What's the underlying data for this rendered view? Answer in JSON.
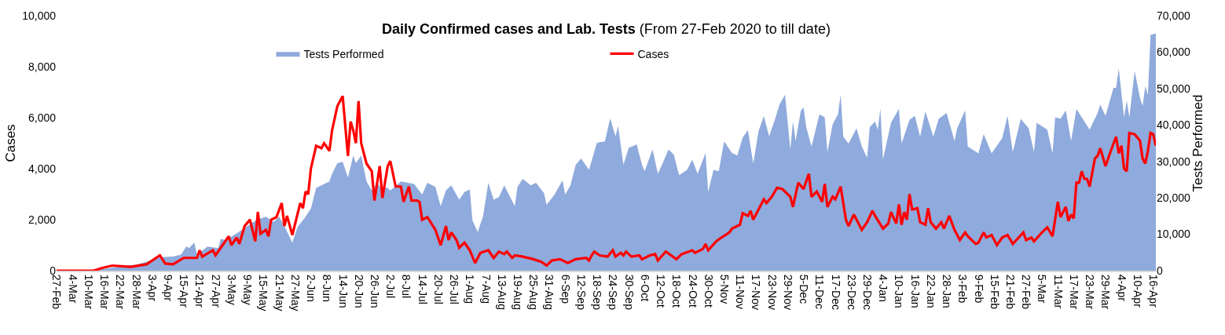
{
  "chart_data": {
    "type": "line",
    "title": "Daily Confirmed cases and Lab. Tests",
    "subtitle": "(From 27-Feb 2020 to till date)",
    "ylabel": "Cases",
    "y2label": "Tests Performed",
    "legend": "top",
    "xlim": [
      "2020-02-27",
      "2021-04-17"
    ],
    "ylim": [
      0,
      10000
    ],
    "yticks": [
      0,
      {
        "value": 2000,
        "label": "2,000"
      },
      {
        "value": 4000,
        "label": "4,000"
      },
      {
        "value": 6000,
        "label": "6,000"
      },
      {
        "value": 8000,
        "label": "8,000"
      },
      {
        "value": 10000,
        "label": "10,000"
      }
    ],
    "y2lim": [
      0,
      70000
    ],
    "y2ticks": [
      0,
      {
        "value": 10000,
        "label": "10,000"
      },
      {
        "value": 20000,
        "label": "20,000"
      },
      {
        "value": 30000,
        "label": "30,000"
      },
      {
        "value": 40000,
        "label": "40,000"
      },
      {
        "value": 50000,
        "label": "50,000"
      },
      {
        "value": 60000,
        "label": "60,000"
      },
      {
        "value": 70000,
        "label": "70,000"
      }
    ],
    "xticks": [
      {
        "value": "2020-02-27",
        "label": "27-Feb"
      },
      {
        "value": "2020-03-04",
        "label": "4-Mar"
      },
      {
        "value": "2020-03-10",
        "label": "10-Mar"
      },
      {
        "value": "2020-03-16",
        "label": "16-Mar"
      },
      {
        "value": "2020-03-22",
        "label": "22-Mar"
      },
      {
        "value": "2020-03-28",
        "label": "28-Mar"
      },
      {
        "value": "2020-04-03",
        "label": "3-Apr"
      },
      {
        "value": "2020-04-09",
        "label": "9-Apr"
      },
      {
        "value": "2020-04-15",
        "label": "15-Apr"
      },
      {
        "value": "2020-04-21",
        "label": "21-Apr"
      },
      {
        "value": "2020-04-27",
        "label": "27-Apr"
      },
      {
        "value": "2020-05-03",
        "label": "3-May"
      },
      {
        "value": "2020-05-09",
        "label": "9-May"
      },
      {
        "value": "2020-05-15",
        "label": "15-May"
      },
      {
        "value": "2020-05-21",
        "label": "21-May"
      },
      {
        "value": "2020-05-27",
        "label": "27-May"
      },
      {
        "value": "2020-06-02",
        "label": "2-Jun"
      },
      {
        "value": "2020-06-08",
        "label": "8-Jun"
      },
      {
        "value": "2020-06-14",
        "label": "14-Jun"
      },
      {
        "value": "2020-06-20",
        "label": "20-Jun"
      },
      {
        "value": "2020-06-26",
        "label": "26-Jun"
      },
      {
        "value": "2020-07-02",
        "label": "2-Jul"
      },
      {
        "value": "2020-07-08",
        "label": "8-Jul"
      },
      {
        "value": "2020-07-14",
        "label": "14-Jul"
      },
      {
        "value": "2020-07-20",
        "label": "20-Jul"
      },
      {
        "value": "2020-07-26",
        "label": "26-Jul"
      },
      {
        "value": "2020-08-01",
        "label": "1-Aug"
      },
      {
        "value": "2020-08-07",
        "label": "7-Aug"
      },
      {
        "value": "2020-08-13",
        "label": "13-Aug"
      },
      {
        "value": "2020-08-19",
        "label": "19-Aug"
      },
      {
        "value": "2020-08-25",
        "label": "25-Aug"
      },
      {
        "value": "2020-08-31",
        "label": "31-Aug"
      },
      {
        "value": "2020-09-06",
        "label": "6-Sep"
      },
      {
        "value": "2020-09-12",
        "label": "12-Sep"
      },
      {
        "value": "2020-09-18",
        "label": "18-Sep"
      },
      {
        "value": "2020-09-24",
        "label": "24-Sep"
      },
      {
        "value": "2020-09-30",
        "label": "30-Sep"
      },
      {
        "value": "2020-10-06",
        "label": "6-Oct"
      },
      {
        "value": "2020-10-12",
        "label": "12-Oct"
      },
      {
        "value": "2020-10-18",
        "label": "18-Oct"
      },
      {
        "value": "2020-10-24",
        "label": "24-Oct"
      },
      {
        "value": "2020-10-30",
        "label": "30-Oct"
      },
      {
        "value": "2020-11-05",
        "label": "5-Nov"
      },
      {
        "value": "2020-11-11",
        "label": "11-Nov"
      },
      {
        "value": "2020-11-17",
        "label": "17-Nov"
      },
      {
        "value": "2020-11-23",
        "label": "23-Nov"
      },
      {
        "value": "2020-11-29",
        "label": "29-Nov"
      },
      {
        "value": "2020-12-05",
        "label": "5-Dec"
      },
      {
        "value": "2020-12-11",
        "label": "11-Dec"
      },
      {
        "value": "2020-12-17",
        "label": "17-Dec"
      },
      {
        "value": "2020-12-23",
        "label": "23-Dec"
      },
      {
        "value": "2020-12-29",
        "label": "29-Dec"
      },
      {
        "value": "2021-01-04",
        "label": "4-Jan"
      },
      {
        "value": "2021-01-10",
        "label": "10-Jan"
      },
      {
        "value": "2021-01-16",
        "label": "16-Jan"
      },
      {
        "value": "2021-01-22",
        "label": "22-Jan"
      },
      {
        "value": "2021-01-28",
        "label": "28-Jan"
      },
      {
        "value": "2021-02-03",
        "label": "3-Feb"
      },
      {
        "value": "2021-02-09",
        "label": "9-Feb"
      },
      {
        "value": "2021-02-15",
        "label": "15-Feb"
      },
      {
        "value": "2021-02-21",
        "label": "21-Feb"
      },
      {
        "value": "2021-02-27",
        "label": "27-Feb"
      },
      {
        "value": "2021-03-05",
        "label": "5-Mar"
      },
      {
        "value": "2021-03-11",
        "label": "11-Mar"
      },
      {
        "value": "2021-03-17",
        "label": "17-Mar"
      },
      {
        "value": "2021-03-23",
        "label": "23-Mar"
      },
      {
        "value": "2021-03-29",
        "label": "29-Mar"
      },
      {
        "value": "2021-04-04",
        "label": "4-Apr"
      },
      {
        "value": "2021-04-10",
        "label": "10-Apr"
      },
      {
        "value": "2021-04-16",
        "label": "16-Apr"
      }
    ],
    "series": [
      {
        "name": "Tests Performed",
        "type": "area",
        "axis": "y2",
        "color": "#8faadc",
        "x": [
          "2020-02-27",
          "2020-03-12",
          "2020-03-22",
          "2020-03-28",
          "2020-04-01",
          "2020-04-06",
          "2020-04-11",
          "2020-04-14",
          "2020-04-16",
          "2020-04-17",
          "2020-04-19",
          "2020-04-20",
          "2020-04-24",
          "2020-04-28",
          "2020-04-29",
          "2020-05-01",
          "2020-05-04",
          "2020-05-07",
          "2020-05-10",
          "2020-05-13",
          "2020-05-16",
          "2020-05-19",
          "2020-05-21",
          "2020-05-23",
          "2020-05-26",
          "2020-05-28",
          "2020-05-31",
          "2020-06-02",
          "2020-06-04",
          "2020-06-06",
          "2020-06-09",
          "2020-06-10",
          "2020-06-12",
          "2020-06-14",
          "2020-06-16",
          "2020-06-18",
          "2020-06-19",
          "2020-06-21",
          "2020-06-23",
          "2020-06-25",
          "2020-06-27",
          "2020-06-28",
          "2020-07-01",
          "2020-07-02",
          "2020-07-06",
          "2020-07-11",
          "2020-07-14",
          "2020-07-16",
          "2020-07-19",
          "2020-07-21",
          "2020-07-23",
          "2020-07-25",
          "2020-07-28",
          "2020-07-30",
          "2020-08-01",
          "2020-08-02",
          "2020-08-04",
          "2020-08-06",
          "2020-08-08",
          "2020-08-10",
          "2020-08-12",
          "2020-08-14",
          "2020-08-18",
          "2020-08-19",
          "2020-08-21",
          "2020-08-24",
          "2020-08-26",
          "2020-08-29",
          "2020-08-30",
          "2020-09-02",
          "2020-09-05",
          "2020-09-06",
          "2020-09-08",
          "2020-09-10",
          "2020-09-12",
          "2020-09-15",
          "2020-09-18",
          "2020-09-21",
          "2020-09-23",
          "2020-09-25",
          "2020-09-26",
          "2020-09-28",
          "2020-09-30",
          "2020-10-03",
          "2020-10-05",
          "2020-10-06",
          "2020-10-09",
          "2020-10-11",
          "2020-10-13",
          "2020-10-15",
          "2020-10-17",
          "2020-10-19",
          "2020-10-22",
          "2020-10-24",
          "2020-10-26",
          "2020-10-29",
          "2020-10-30",
          "2020-11-01",
          "2020-11-03",
          "2020-11-05",
          "2020-11-08",
          "2020-11-10",
          "2020-11-12",
          "2020-11-14",
          "2020-11-16",
          "2020-11-18",
          "2020-11-20",
          "2020-11-22",
          "2020-11-24",
          "2020-11-26",
          "2020-11-28",
          "2020-11-30",
          "2020-12-01",
          "2020-12-02",
          "2020-12-04",
          "2020-12-05",
          "2020-12-06",
          "2020-12-08",
          "2020-12-11",
          "2020-12-13",
          "2020-12-14",
          "2020-12-16",
          "2020-12-18",
          "2020-12-19",
          "2020-12-20",
          "2020-12-22",
          "2020-12-25",
          "2020-12-27",
          "2020-12-29",
          "2020-12-30",
          "2021-01-01",
          "2021-01-02",
          "2021-01-03",
          "2021-01-04",
          "2021-01-07",
          "2021-01-10",
          "2021-01-11",
          "2021-01-14",
          "2021-01-16",
          "2021-01-18",
          "2021-01-20",
          "2021-01-23",
          "2021-01-25",
          "2021-01-28",
          "2021-01-31",
          "2021-02-01",
          "2021-02-04",
          "2021-02-05",
          "2021-02-09",
          "2021-02-11",
          "2021-02-14",
          "2021-02-18",
          "2021-02-20",
          "2021-02-22",
          "2021-02-25",
          "2021-02-28",
          "2021-03-02",
          "2021-03-03",
          "2021-03-07",
          "2021-03-09",
          "2021-03-10",
          "2021-03-12",
          "2021-03-14",
          "2021-03-16",
          "2021-03-18",
          "2021-03-20",
          "2021-03-23",
          "2021-03-26",
          "2021-03-27",
          "2021-03-29",
          "2021-04-01",
          "2021-04-02",
          "2021-04-03",
          "2021-04-05",
          "2021-04-06",
          "2021-04-07",
          "2021-04-09",
          "2021-04-11",
          "2021-04-12",
          "2021-04-13",
          "2021-04-14",
          "2021-04-15",
          "2021-04-17"
        ],
        "values": [
          0,
          0,
          1200,
          1600,
          2500,
          3700,
          3900,
          4400,
          6700,
          6200,
          7700,
          4400,
          6600,
          6200,
          8700,
          8400,
          9800,
          11200,
          12700,
          14100,
          14800,
          13400,
          14800,
          12300,
          7700,
          12000,
          14800,
          17000,
          22700,
          23400,
          24500,
          26600,
          29500,
          29900,
          25600,
          31600,
          29500,
          31600,
          24500,
          22000,
          24100,
          23100,
          22700,
          22000,
          24500,
          23800,
          20900,
          24100,
          23000,
          17700,
          22000,
          23400,
          19500,
          21600,
          22300,
          13800,
          10600,
          14900,
          24100,
          19500,
          20200,
          23400,
          17700,
          23000,
          25200,
          23400,
          24100,
          21300,
          18100,
          20900,
          24800,
          20900,
          23400,
          29100,
          30800,
          27700,
          35100,
          35500,
          41800,
          36900,
          39700,
          29100,
          33700,
          34700,
          29100,
          27300,
          33300,
          26600,
          29800,
          33300,
          31900,
          26200,
          27700,
          30500,
          26600,
          32300,
          21600,
          27700,
          27300,
          35500,
          32300,
          31600,
          36500,
          38600,
          29400,
          38300,
          42500,
          36900,
          41100,
          45700,
          48300,
          33300,
          41000,
          35600,
          44000,
          44800,
          39400,
          34100,
          42900,
          42100,
          32600,
          40200,
          42900,
          48300,
          36800,
          34900,
          39100,
          34100,
          31000,
          39400,
          41000,
          38700,
          44400,
          30600,
          40600,
          44400,
          34900,
          41400,
          42500,
          36800,
          43700,
          36800,
          41700,
          43300,
          35600,
          39100,
          44000,
          34100,
          32200,
          37500,
          32200,
          36400,
          42500,
          32600,
          41700,
          39100,
          32600,
          40600,
          38700,
          32200,
          42100,
          41700,
          44000,
          35600,
          44400,
          42100,
          38700,
          43300,
          45600,
          42500,
          50200,
          50200,
          55500,
          42100,
          46700,
          42100,
          54800,
          47500,
          45200,
          50600,
          48300,
          64700,
          65100
        ]
      },
      {
        "name": "Cases",
        "color": "#ff0000",
        "x": [
          "2020-02-27",
          "2020-03-12",
          "2020-03-15",
          "2020-03-19",
          "2020-03-26",
          "2020-04-01",
          "2020-04-06",
          "2020-04-08",
          "2020-04-11",
          "2020-04-15",
          "2020-04-20",
          "2020-04-21",
          "2020-04-22",
          "2020-04-26",
          "2020-04-27",
          "2020-04-29",
          "2020-05-02",
          "2020-05-03",
          "2020-05-05",
          "2020-05-06",
          "2020-05-08",
          "2020-05-10",
          "2020-05-12",
          "2020-05-13",
          "2020-05-14",
          "2020-05-16",
          "2020-05-17",
          "2020-05-18",
          "2020-05-20",
          "2020-05-22",
          "2020-05-23",
          "2020-05-24",
          "2020-05-26",
          "2020-05-29",
          "2020-05-30",
          "2020-05-31",
          "2020-06-01",
          "2020-06-02",
          "2020-06-04",
          "2020-06-06",
          "2020-06-07",
          "2020-06-09",
          "2020-06-10",
          "2020-06-12",
          "2020-06-14",
          "2020-06-16",
          "2020-06-17",
          "2020-06-18",
          "2020-06-19",
          "2020-06-20",
          "2020-06-21",
          "2020-06-23",
          "2020-06-25",
          "2020-06-26",
          "2020-06-28",
          "2020-06-29",
          "2020-07-01",
          "2020-07-02",
          "2020-07-04",
          "2020-07-06",
          "2020-07-07",
          "2020-07-09",
          "2020-07-10",
          "2020-07-12",
          "2020-07-13",
          "2020-07-14",
          "2020-07-16",
          "2020-07-19",
          "2020-07-21",
          "2020-07-23",
          "2020-07-24",
          "2020-07-25",
          "2020-07-27",
          "2020-07-28",
          "2020-07-30",
          "2020-08-01",
          "2020-08-03",
          "2020-08-05",
          "2020-08-08",
          "2020-08-10",
          "2020-08-12",
          "2020-08-14",
          "2020-08-15",
          "2020-08-17",
          "2020-08-18",
          "2020-08-21",
          "2020-08-25",
          "2020-08-28",
          "2020-08-30",
          "2020-09-01",
          "2020-09-04",
          "2020-09-07",
          "2020-09-10",
          "2020-09-14",
          "2020-09-15",
          "2020-09-16",
          "2020-09-17",
          "2020-09-19",
          "2020-09-22",
          "2020-09-24",
          "2020-09-25",
          "2020-09-27",
          "2020-09-28",
          "2020-09-29",
          "2020-10-01",
          "2020-10-04",
          "2020-10-05",
          "2020-10-08",
          "2020-10-10",
          "2020-10-11",
          "2020-10-14",
          "2020-10-16",
          "2020-10-18",
          "2020-10-20",
          "2020-10-24",
          "2020-10-25",
          "2020-10-28",
          "2020-10-29",
          "2020-10-30",
          "2020-11-02",
          "2020-11-04",
          "2020-11-07",
          "2020-11-08",
          "2020-11-11",
          "2020-11-12",
          "2020-11-14",
          "2020-11-15",
          "2020-11-16",
          "2020-11-19",
          "2020-11-20",
          "2020-11-21",
          "2020-11-23",
          "2020-11-25",
          "2020-11-27",
          "2020-11-30",
          "2020-12-01",
          "2020-12-03",
          "2020-12-05",
          "2020-12-07",
          "2020-12-08",
          "2020-12-10",
          "2020-12-12",
          "2020-12-13",
          "2020-12-14",
          "2020-12-16",
          "2020-12-17",
          "2020-12-19",
          "2020-12-21",
          "2020-12-22",
          "2020-12-24",
          "2020-12-25",
          "2020-12-27",
          "2020-12-29",
          "2020-12-31",
          "2021-01-01",
          "2021-01-04",
          "2021-01-06",
          "2021-01-07",
          "2021-01-09",
          "2021-01-10",
          "2021-01-11",
          "2021-01-12",
          "2021-01-13",
          "2021-01-14",
          "2021-01-15",
          "2021-01-17",
          "2021-01-18",
          "2021-01-20",
          "2021-01-21",
          "2021-01-22",
          "2021-01-24",
          "2021-01-26",
          "2021-01-27",
          "2021-01-28",
          "2021-01-29",
          "2021-01-31",
          "2021-02-02",
          "2021-02-04",
          "2021-02-05",
          "2021-02-08",
          "2021-02-09",
          "2021-02-11",
          "2021-02-12",
          "2021-02-14",
          "2021-02-16",
          "2021-02-18",
          "2021-02-20",
          "2021-02-22",
          "2021-02-26",
          "2021-02-27",
          "2021-03-01",
          "2021-03-02",
          "2021-03-05",
          "2021-03-07",
          "2021-03-09",
          "2021-03-11",
          "2021-03-12",
          "2021-03-14",
          "2021-03-15",
          "2021-03-16",
          "2021-03-17",
          "2021-03-18",
          "2021-03-19",
          "2021-03-20",
          "2021-03-21",
          "2021-03-22",
          "2021-03-23",
          "2021-03-25",
          "2021-03-26",
          "2021-03-27",
          "2021-03-29",
          "2021-03-31",
          "2021-04-02",
          "2021-04-03",
          "2021-04-04",
          "2021-04-05",
          "2021-04-06",
          "2021-04-07",
          "2021-04-09",
          "2021-04-11",
          "2021-04-12",
          "2021-04-13",
          "2021-04-14",
          "2021-04-15",
          "2021-04-16",
          "2021-04-17"
        ],
        "values": [
          0,
          0,
          100,
          200,
          150,
          250,
          600,
          280,
          250,
          500,
          500,
          800,
          550,
          800,
          600,
          900,
          1350,
          1000,
          1300,
          1050,
          1750,
          2000,
          1150,
          2300,
          1450,
          1600,
          1350,
          2000,
          2100,
          2650,
          1750,
          2150,
          1400,
          2650,
          2450,
          3100,
          3000,
          4000,
          4900,
          4800,
          5000,
          4700,
          5500,
          6450,
          6850,
          4500,
          5850,
          5500,
          5000,
          6650,
          5000,
          4200,
          3900,
          2750,
          4100,
          2850,
          4100,
          4300,
          3300,
          3300,
          2700,
          3300,
          2750,
          2750,
          2700,
          2000,
          2100,
          1600,
          1000,
          1750,
          1200,
          1500,
          1200,
          900,
          1100,
          800,
          300,
          700,
          800,
          500,
          750,
          650,
          750,
          500,
          600,
          550,
          450,
          350,
          200,
          400,
          450,
          300,
          450,
          500,
          400,
          600,
          750,
          600,
          550,
          800,
          550,
          700,
          600,
          750,
          550,
          600,
          450,
          600,
          650,
          400,
          750,
          600,
          450,
          650,
          800,
          700,
          850,
          1050,
          800,
          1150,
          1300,
          1500,
          1650,
          1800,
          2250,
          2150,
          2350,
          2000,
          2600,
          2800,
          2650,
          2900,
          3250,
          3200,
          2900,
          2500,
          3450,
          3200,
          3800,
          2900,
          3100,
          2700,
          3400,
          2500,
          2900,
          2800,
          3300,
          2000,
          1750,
          2200,
          2000,
          1600,
          1900,
          2350,
          2150,
          1650,
          1850,
          2300,
          1850,
          2600,
          1800,
          2300,
          2000,
          3000,
          2400,
          2450,
          1900,
          1800,
          2450,
          1900,
          1650,
          1900,
          1650,
          1900,
          2150,
          1600,
          1200,
          1500,
          1350,
          1050,
          1100,
          1500,
          1300,
          1400,
          1000,
          1300,
          1400,
          1050,
          1500,
          1200,
          1300,
          1150,
          1500,
          1700,
          1350,
          2700,
          2100,
          2500,
          1950,
          2200,
          2050,
          3450,
          3450,
          3900,
          3600,
          3600,
          3300,
          4400,
          4500,
          4800,
          4100,
          4700,
          5250,
          4600,
          4900,
          4000,
          3900,
          5400,
          5350,
          5100,
          4400,
          4200,
          4700,
          5400,
          5350,
          4900
        ]
      }
    ]
  }
}
